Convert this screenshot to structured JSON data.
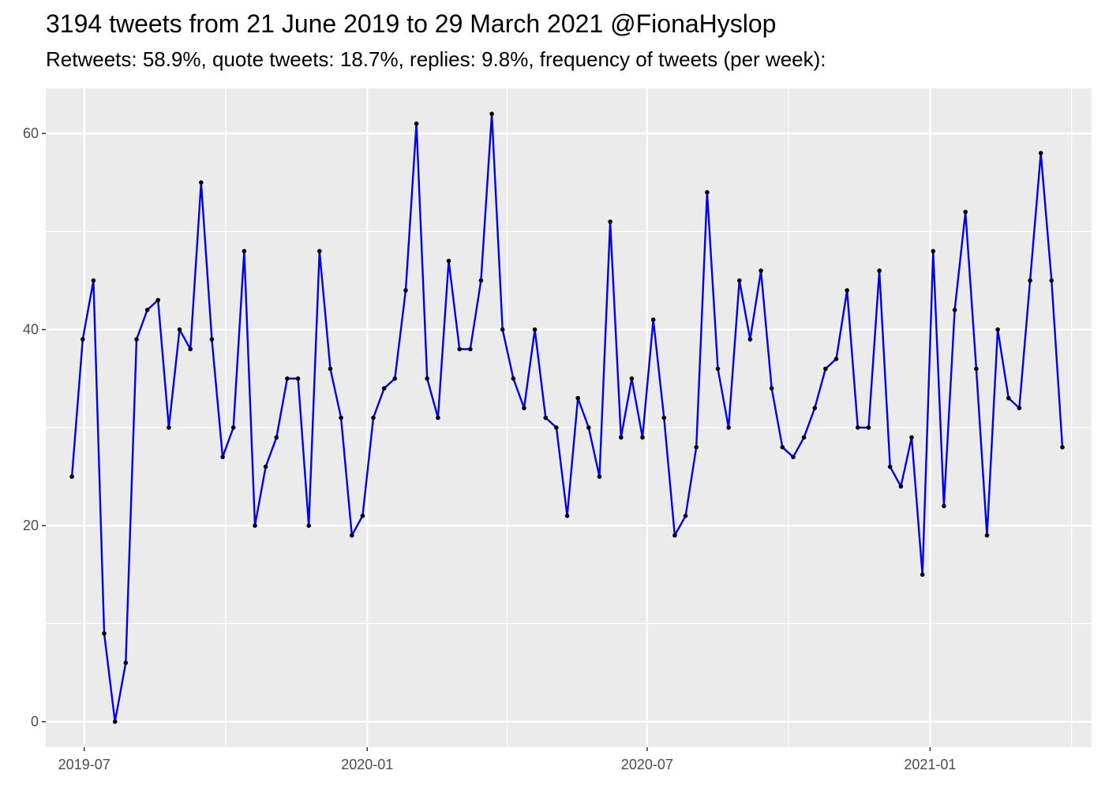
{
  "chart_data": {
    "type": "line",
    "title": "3194 tweets from 21 June 2019 to 29 March 2021 @FionaHyslop",
    "subtitle": "Retweets: 58.9%, quote tweets: 18.7%, replies: 9.8%, frequency of tweets (per week):",
    "xlabel": "",
    "ylabel": "",
    "x_start": "2019-06-23",
    "x_step_days": 7,
    "values": [
      25,
      39,
      45,
      9,
      0,
      6,
      39,
      42,
      43,
      30,
      40,
      38,
      55,
      39,
      27,
      30,
      48,
      20,
      26,
      29,
      35,
      35,
      20,
      48,
      36,
      31,
      19,
      21,
      31,
      34,
      35,
      44,
      61,
      35,
      31,
      47,
      38,
      38,
      45,
      62,
      40,
      35,
      32,
      40,
      31,
      30,
      21,
      33,
      30,
      25,
      51,
      29,
      35,
      29,
      41,
      31,
      19,
      21,
      28,
      54,
      36,
      30,
      45,
      39,
      46,
      34,
      28,
      27,
      29,
      32,
      36,
      37,
      44,
      30,
      30,
      46,
      26,
      24,
      29,
      15,
      48,
      22,
      42,
      52,
      36,
      19,
      40,
      33,
      32,
      45,
      58,
      45,
      28
    ],
    "x_ticks": [
      "2019-07",
      "2020-01",
      "2020-07",
      "2021-01"
    ],
    "y_ticks": [
      0,
      20,
      40,
      60
    ],
    "xlim": [
      "2019-06-06",
      "2021-04-16"
    ],
    "ylim": [
      -2.6,
      64.6
    ],
    "grid": true,
    "colors": {
      "panel": "#ebebeb",
      "grid": "#ffffff",
      "line": "#0000ee",
      "point": "#000000",
      "tick_text": "#4d4d4d"
    }
  }
}
